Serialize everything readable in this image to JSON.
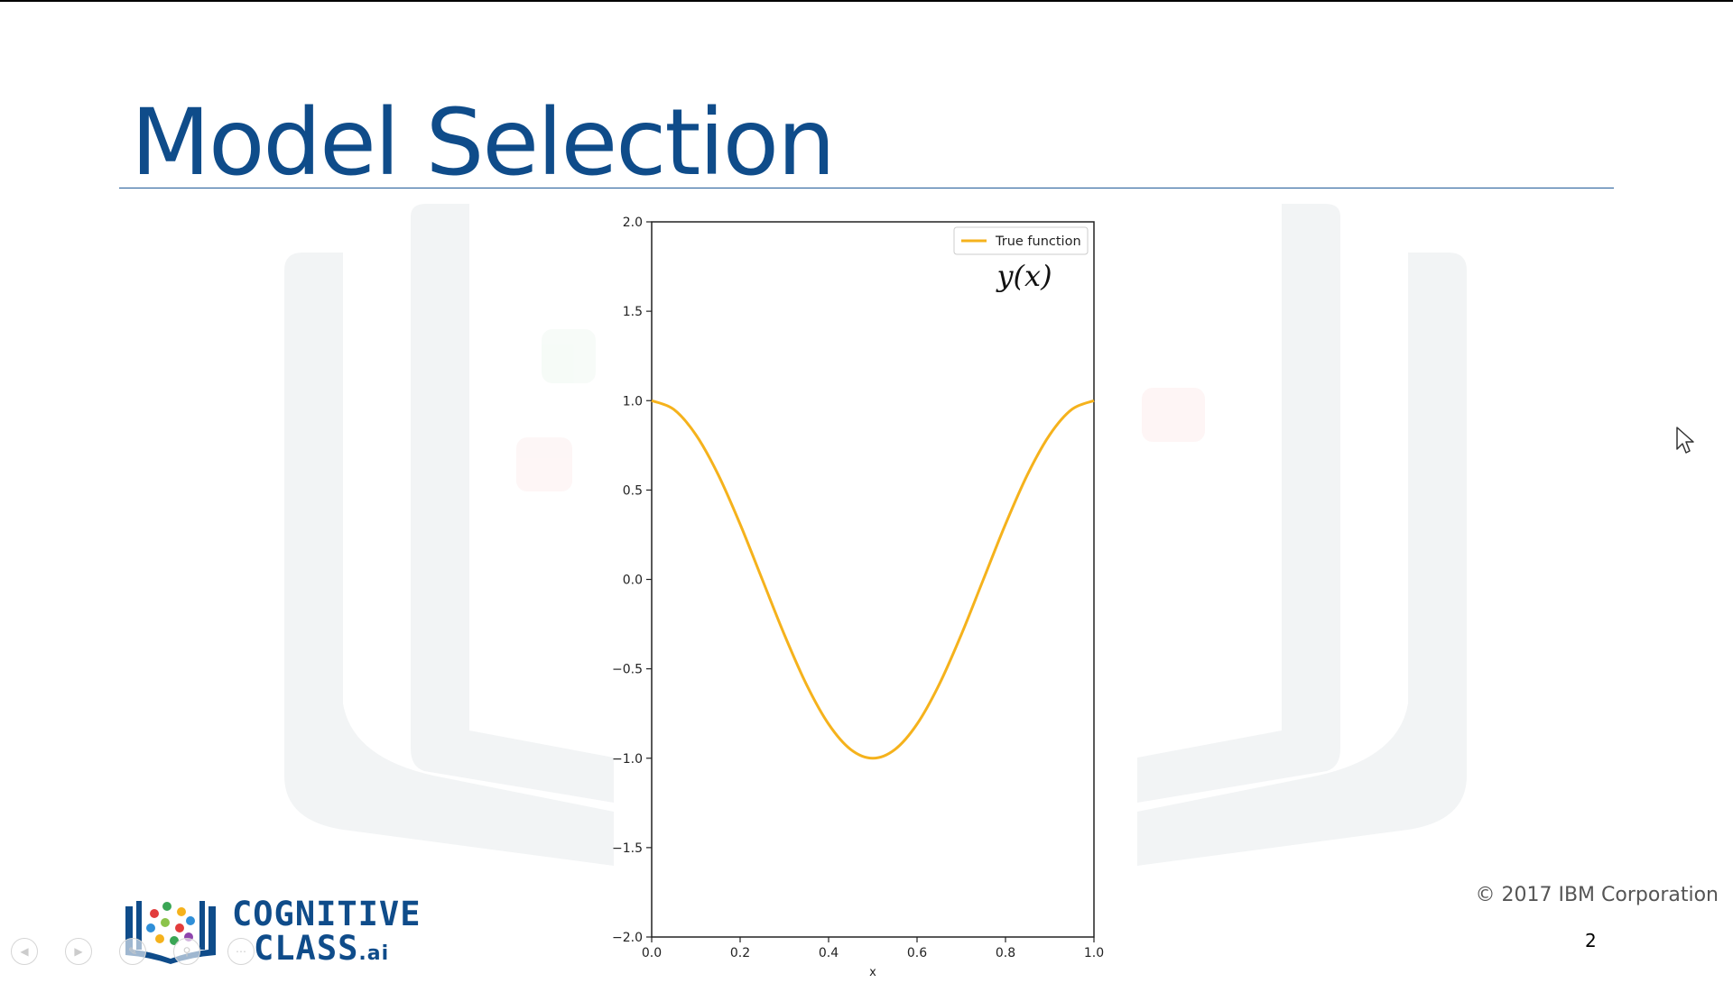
{
  "slide": {
    "title": "Model Selection",
    "copyright": "© 2017 IBM Corporation",
    "page_number": "2"
  },
  "logo": {
    "line1": "COGNITIVE",
    "line2": "CLASS",
    "suffix": ".ai",
    "color": "#0f4c8a"
  },
  "colors": {
    "title": "#0f4c8a",
    "curve": "#f5b21c",
    "watermark": "#f2f4f5"
  },
  "nav": {
    "icons": [
      "previous-slide-icon",
      "next-slide-icon",
      "pen-icon",
      "zoom-icon",
      "more-icon"
    ]
  },
  "chart_data": {
    "type": "line",
    "title": "",
    "xlabel": "x",
    "ylabel": "",
    "xlim": [
      0.0,
      1.0
    ],
    "ylim": [
      -2.0,
      2.0
    ],
    "x_ticks": [
      0.0,
      0.2,
      0.4,
      0.6,
      0.8,
      1.0
    ],
    "x_tick_labels": [
      "0.0",
      "0.2",
      "0.4",
      "0.6",
      "0.8",
      "1.0"
    ],
    "y_ticks": [
      2.0,
      1.5,
      1.0,
      0.5,
      0.0,
      -0.5,
      -1.0,
      -1.5,
      -2.0
    ],
    "y_tick_labels": [
      "2.0",
      "1.5",
      "1.0",
      "0.5",
      "0.0",
      "−0.5",
      "−1.0",
      "−1.5",
      "−2.0"
    ],
    "grid": false,
    "legend_position": "top-right",
    "annotation": "y(x)",
    "series": [
      {
        "name": "True function",
        "color": "#f5b21c",
        "x": [
          0.0,
          0.05,
          0.1,
          0.15,
          0.2,
          0.25,
          0.3,
          0.35,
          0.4,
          0.45,
          0.5,
          0.55,
          0.6,
          0.65,
          0.7,
          0.75,
          0.8,
          0.85,
          0.9,
          0.95,
          1.0
        ],
        "y": [
          1.0,
          0.951,
          0.809,
          0.588,
          0.309,
          0.0,
          -0.309,
          -0.588,
          -0.809,
          -0.951,
          -1.0,
          -0.951,
          -0.809,
          -0.588,
          -0.309,
          0.0,
          0.309,
          0.588,
          0.809,
          0.951,
          1.0
        ]
      }
    ]
  }
}
